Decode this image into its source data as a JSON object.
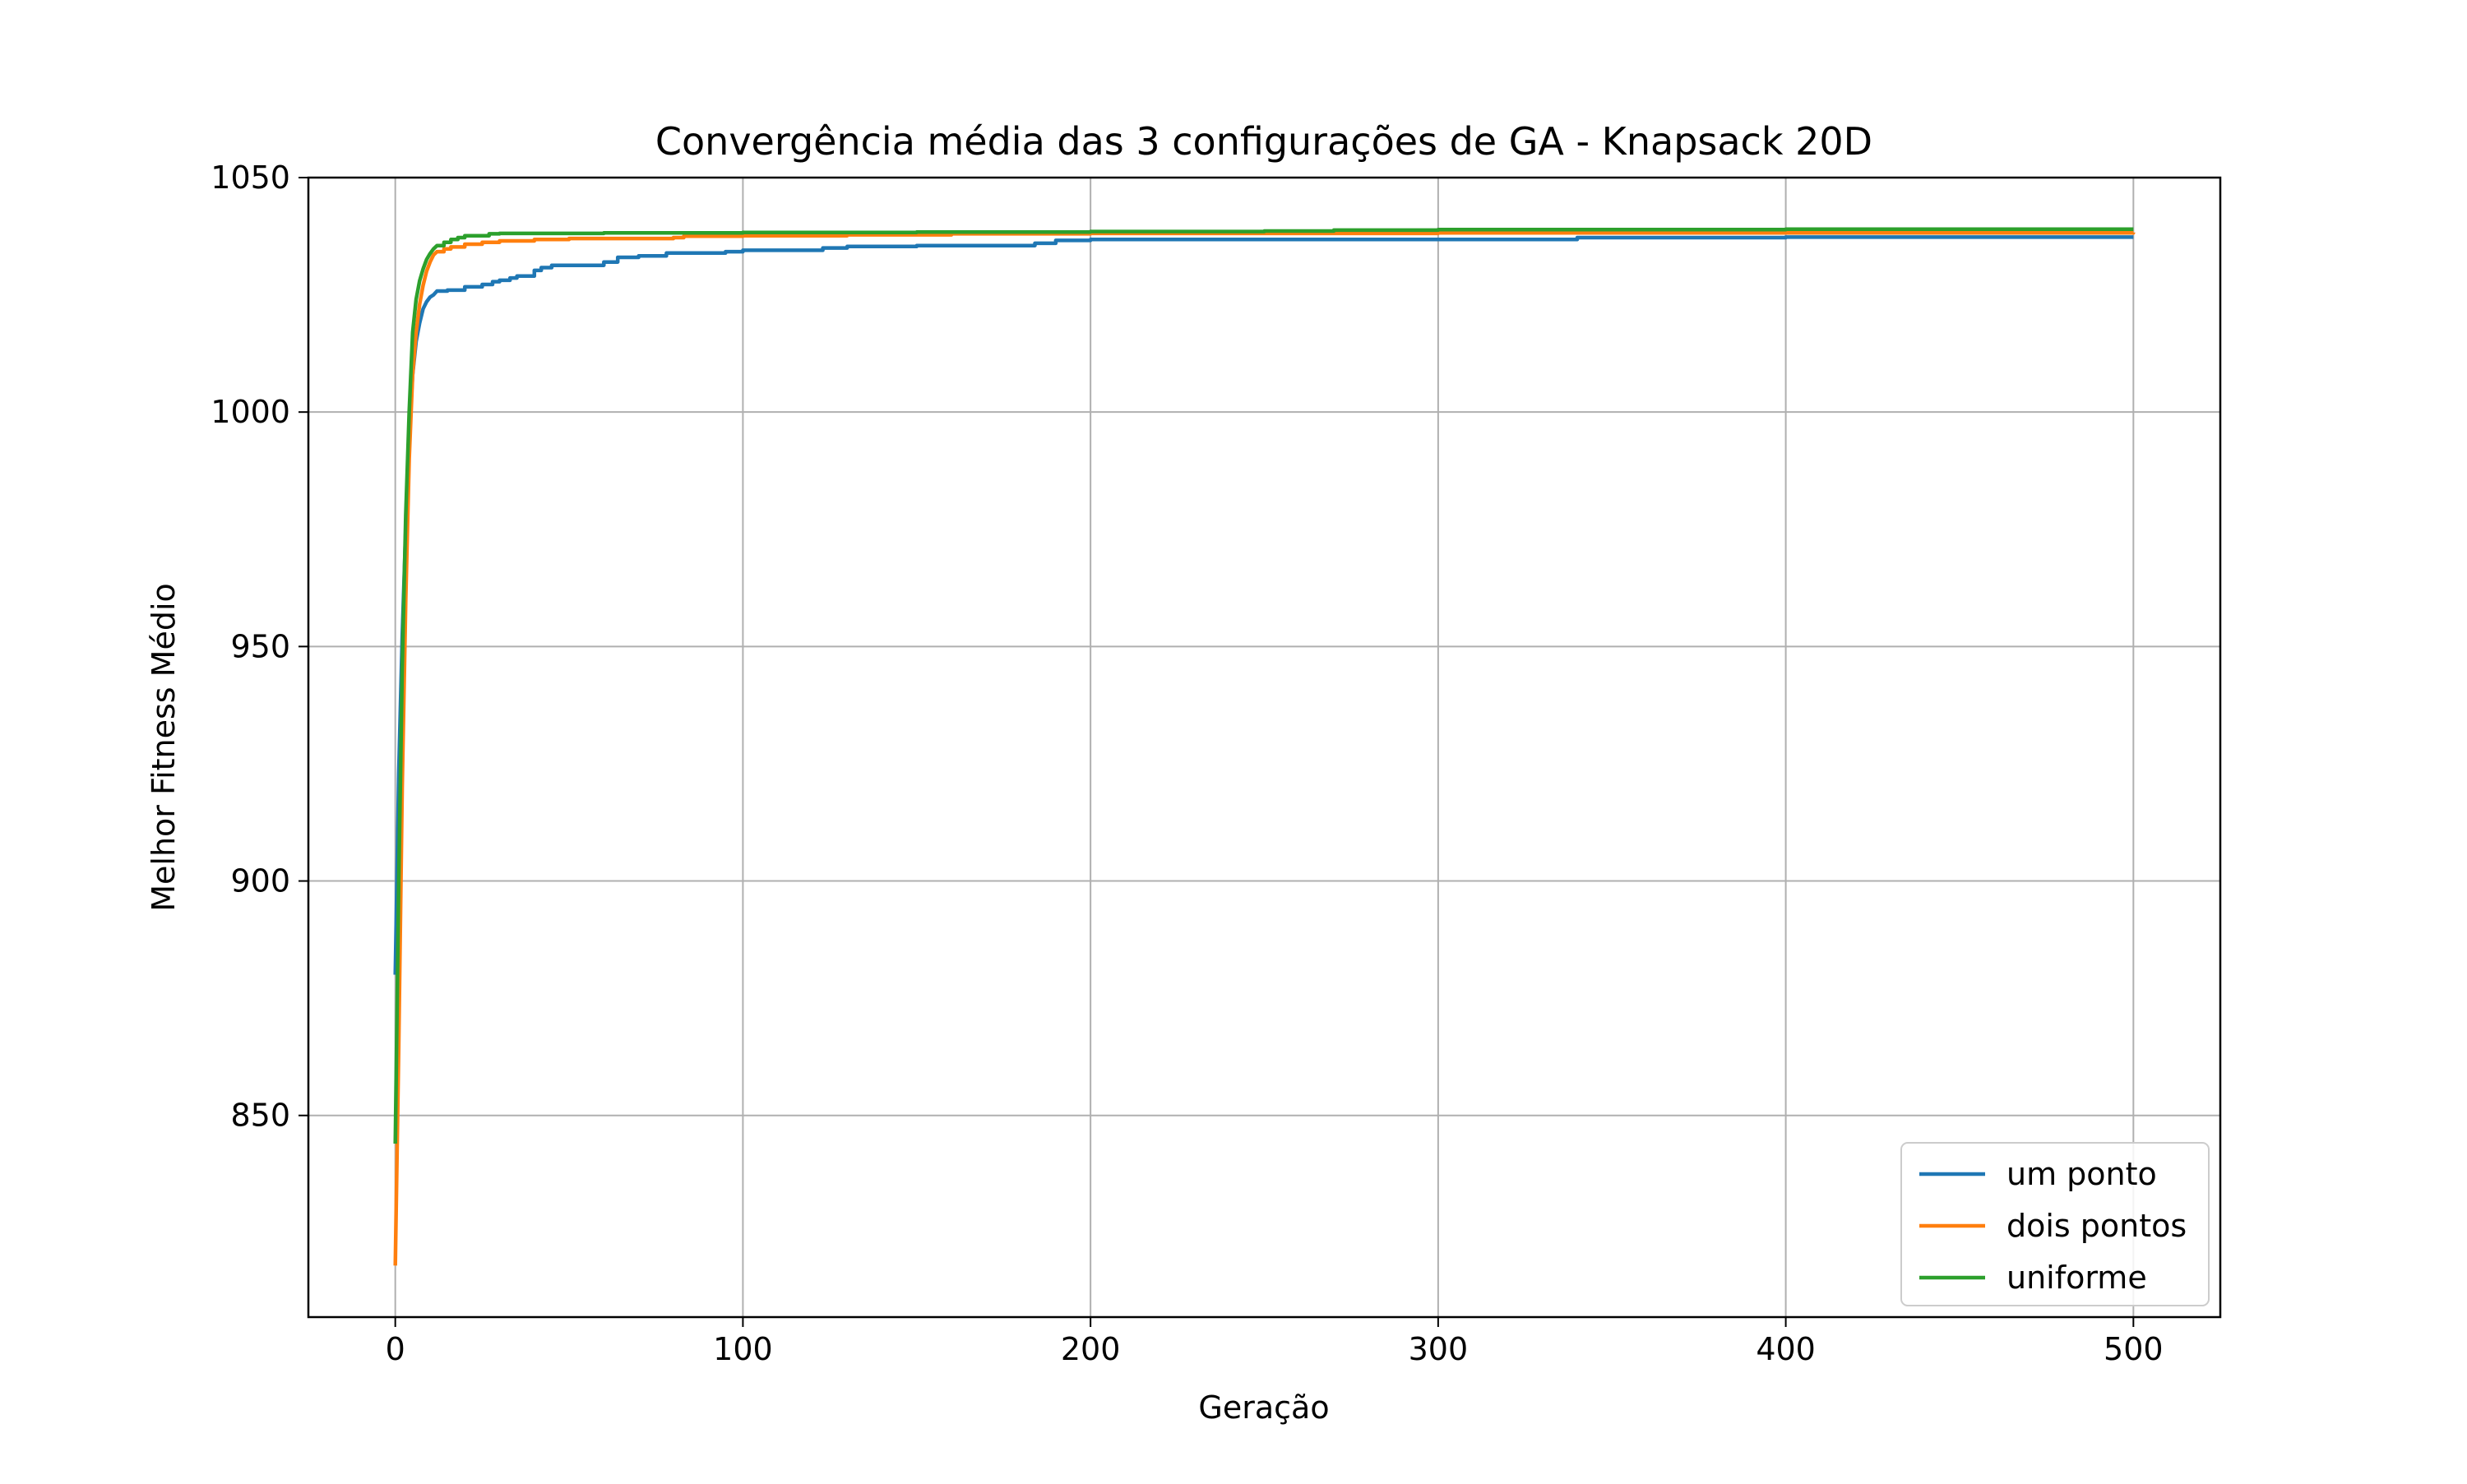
{
  "chart_data": {
    "type": "line",
    "title": "Convergência média das 3 configurações de GA - Knapsack 20D",
    "xlabel": "Geração",
    "ylabel": "Melhor Fitness Médio",
    "xlim": [
      -25,
      525
    ],
    "ylim": [
      807,
      1050
    ],
    "xticks": [
      0,
      100,
      200,
      300,
      400,
      500
    ],
    "yticks": [
      850,
      900,
      950,
      1000,
      1050
    ],
    "grid": true,
    "legend_position": "bottom-right",
    "series": [
      {
        "name": "um ponto",
        "color": "#1f77b4",
        "x": [
          0,
          1,
          2,
          3,
          4,
          5,
          6,
          7,
          8,
          9,
          10,
          11,
          12,
          15,
          20,
          25,
          28,
          30,
          33,
          35,
          40,
          42,
          45,
          55,
          60,
          64,
          70,
          78,
          95,
          100,
          110,
          123,
          130,
          150,
          160,
          184,
          190,
          200,
          250,
          300,
          340,
          400,
          500
        ],
        "y": [
          880,
          923,
          952,
          975,
          995,
          1008,
          1015,
          1019,
          1022,
          1023.5,
          1024.5,
          1025,
          1025.8,
          1026,
          1026.7,
          1027.2,
          1027.8,
          1028.1,
          1028.6,
          1029,
          1030.2,
          1030.8,
          1031.3,
          1031.3,
          1032,
          1033,
          1033.3,
          1033.9,
          1034.2,
          1034.5,
          1034.5,
          1035,
          1035.3,
          1035.5,
          1035.5,
          1036,
          1036.6,
          1036.8,
          1036.8,
          1036.8,
          1037.2,
          1037.3,
          1037.3
        ]
      },
      {
        "name": "dois pontos",
        "color": "#ff7f0e",
        "x": [
          0,
          1,
          2,
          3,
          4,
          5,
          6,
          7,
          8,
          9,
          10,
          11,
          12,
          14,
          16,
          20,
          25,
          30,
          40,
          50,
          80,
          83,
          100,
          130,
          160,
          200,
          300,
          500
        ],
        "y": [
          818,
          865,
          920,
          960,
          990,
          1008,
          1017,
          1023,
          1027,
          1030,
          1032,
          1033.5,
          1034.2,
          1034.8,
          1035.2,
          1035.8,
          1036.2,
          1036.5,
          1036.8,
          1037,
          1037.2,
          1037.5,
          1037.6,
          1037.8,
          1038,
          1038.1,
          1038.2,
          1038.3
        ]
      },
      {
        "name": "uniforme",
        "color": "#2ca02c",
        "x": [
          0,
          1,
          2,
          3,
          4,
          5,
          6,
          7,
          8,
          9,
          10,
          11,
          12,
          14,
          16,
          18,
          20,
          27,
          30,
          60,
          100,
          150,
          200,
          250,
          270,
          300,
          400,
          500
        ],
        "y": [
          844,
          900,
          945,
          978,
          1000,
          1017,
          1024,
          1028,
          1030.5,
          1032.5,
          1033.8,
          1034.8,
          1035.5,
          1036.2,
          1036.8,
          1037.2,
          1037.6,
          1038,
          1038.1,
          1038.2,
          1038.3,
          1038.4,
          1038.5,
          1038.6,
          1038.8,
          1038.9,
          1039,
          1039
        ]
      }
    ]
  }
}
